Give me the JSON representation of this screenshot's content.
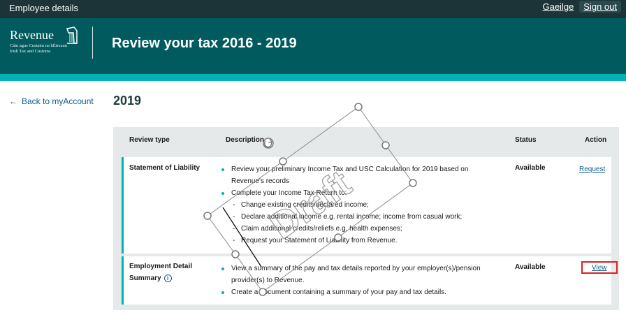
{
  "topbar": {
    "app_label": "Employee details",
    "language_link": "Gaeilge",
    "signout_label": "Sign out"
  },
  "header": {
    "logo_wordmark": "Revenue",
    "logo_sub_1": "Cáin agus Custaim na hÉireann",
    "logo_sub_2": "Irish Tax and Customs",
    "title": "Review your tax 2016 - 2019"
  },
  "nav": {
    "back_label": "Back to myAccount"
  },
  "page": {
    "year": "2019"
  },
  "table": {
    "headers": {
      "type": "Review type",
      "description": "Description",
      "status": "Status",
      "action": "Action"
    },
    "rows": [
      {
        "type": "Statement of Liability",
        "bullets": [
          "Review your preliminary Income Tax and USC Calculation for 2019 based on",
          "Revenue's records",
          "Complete your Income Tax Return to:"
        ],
        "sub_items": [
          "Change existing credits/declared income;",
          "Declare additional income e.g. rental income; income from casual work;",
          "Claim additional credits/reliefs e.g. health expenses;",
          "Request your Statement of Liability from Revenue."
        ],
        "status": "Available",
        "action": "Request"
      },
      {
        "type_line_1": "Employment Detail",
        "type_line_2": "Summary",
        "bullets": [
          "View a summary of the pay and tax details reported by your employer(s)/pension",
          "provider(s) to Revenue.",
          "Create a document containing a summary of your pay and tax details."
        ],
        "status": "Available",
        "action": "View"
      }
    ]
  },
  "watermark": {
    "text": "Draft"
  },
  "colors": {
    "topbar": "#1c3438",
    "header": "#005a5e",
    "accent": "#00b2b6",
    "link": "#0b5f8a",
    "highlight": "#e02020"
  }
}
